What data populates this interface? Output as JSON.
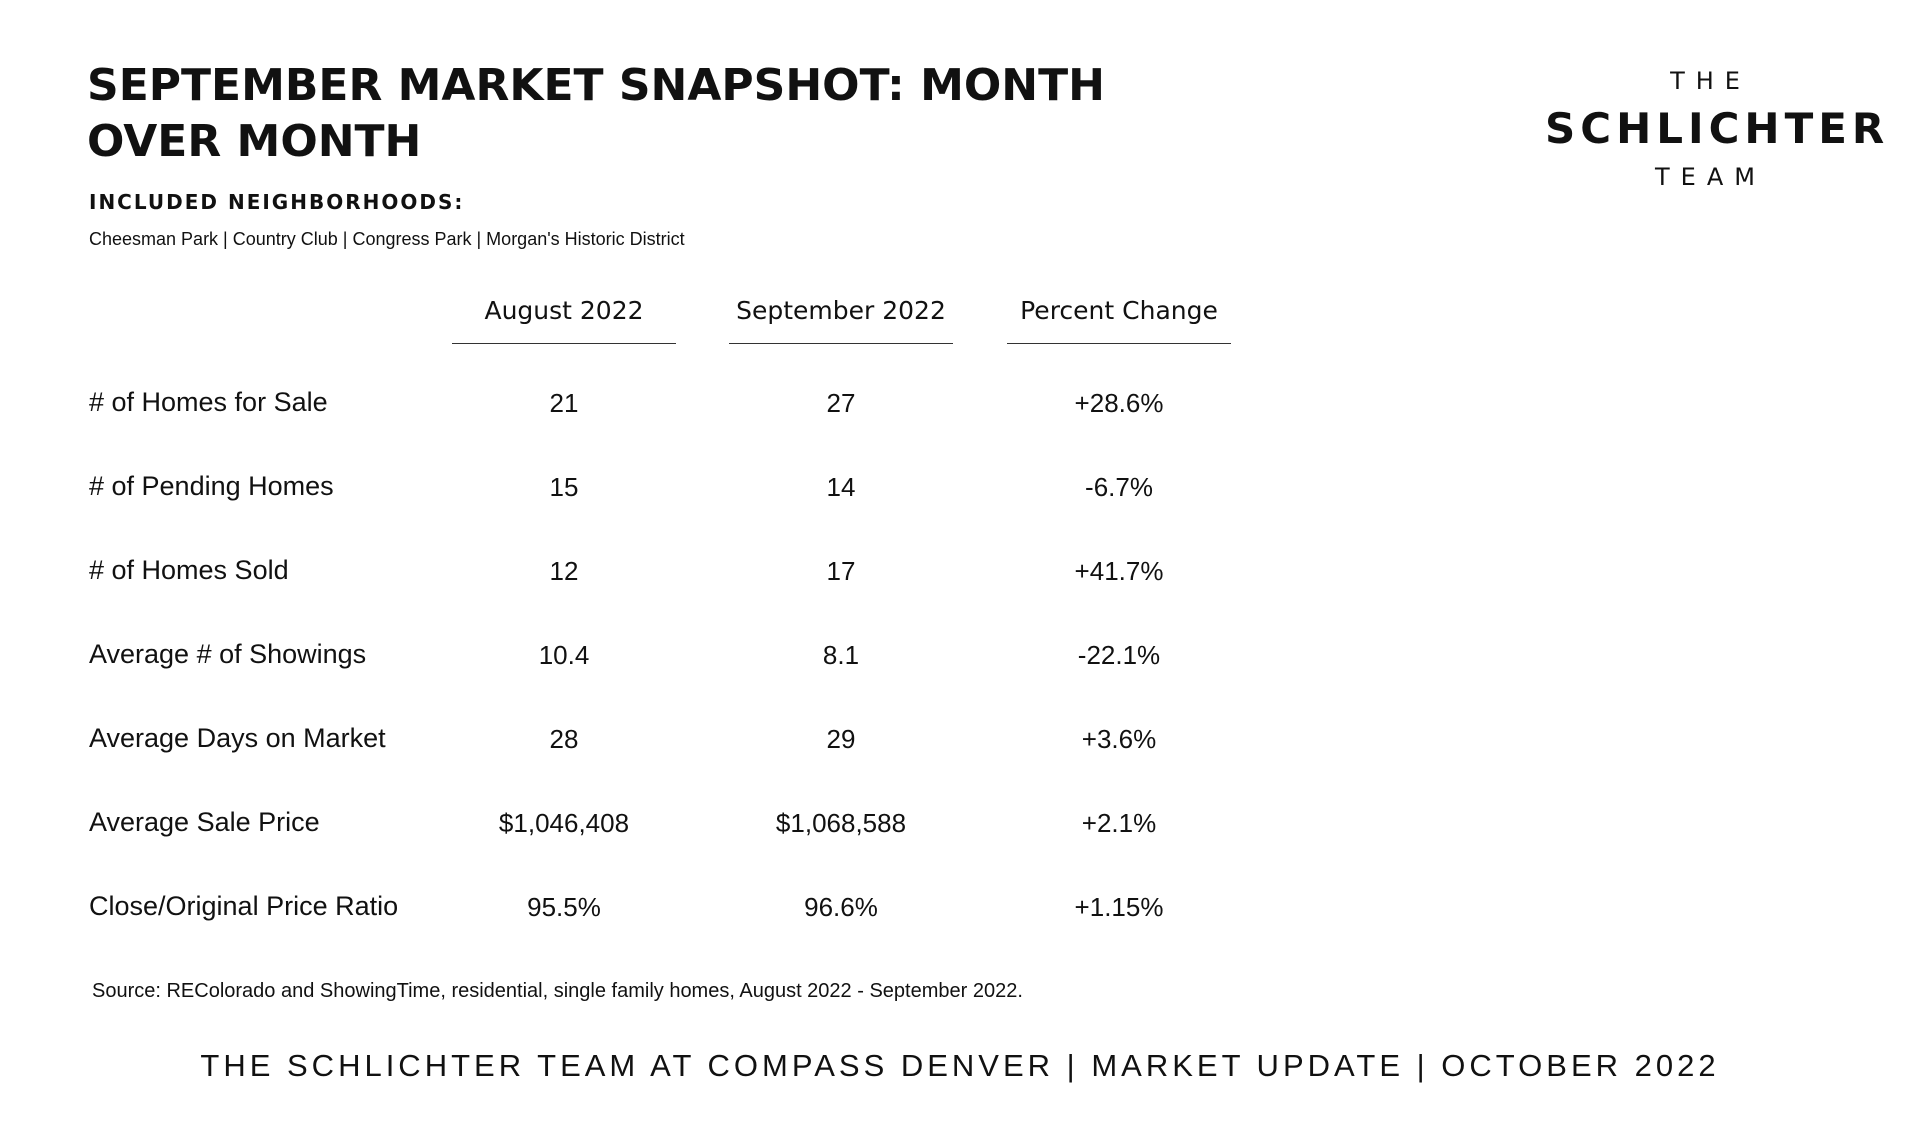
{
  "title": "SEPTEMBER MARKET SNAPSHOT: MONTH OVER MONTH",
  "neighborhoods": {
    "heading": "INCLUDED NEIGHBORHOODS:",
    "list": "Cheesman Park | Country Club | Congress Park | Morgan's Historic District"
  },
  "logo": {
    "line1": "THE",
    "line2": "SCHLICHTER",
    "line3": "TEAM"
  },
  "table": {
    "columns": [
      "August 2022",
      "September 2022",
      "Percent Change"
    ],
    "rows": [
      {
        "label": "# of Homes for Sale",
        "aug": "21",
        "sep": "27",
        "change": "+28.6%"
      },
      {
        "label": "# of Pending Homes",
        "aug": "15",
        "sep": "14",
        "change": "-6.7%"
      },
      {
        "label": "# of Homes Sold",
        "aug": "12",
        "sep": "17",
        "change": "+41.7%"
      },
      {
        "label": "Average # of Showings",
        "aug": "10.4",
        "sep": "8.1",
        "change": "-22.1%"
      },
      {
        "label": "Average Days on Market",
        "aug": "28",
        "sep": "29",
        "change": "+3.6%"
      },
      {
        "label": "Average Sale Price",
        "aug": "$1,046,408",
        "sep": "$1,068,588",
        "change": "+2.1%"
      },
      {
        "label": "Close/Original Price Ratio",
        "aug": "95.5%",
        "sep": "96.6%",
        "change": "+1.15%"
      }
    ]
  },
  "source": "Source: REColorado and ShowingTime, residential, single family homes, August 2022 - September 2022.",
  "footer": "THE SCHLICHTER TEAM AT COMPASS DENVER | MARKET UPDATE | OCTOBER 2022"
}
